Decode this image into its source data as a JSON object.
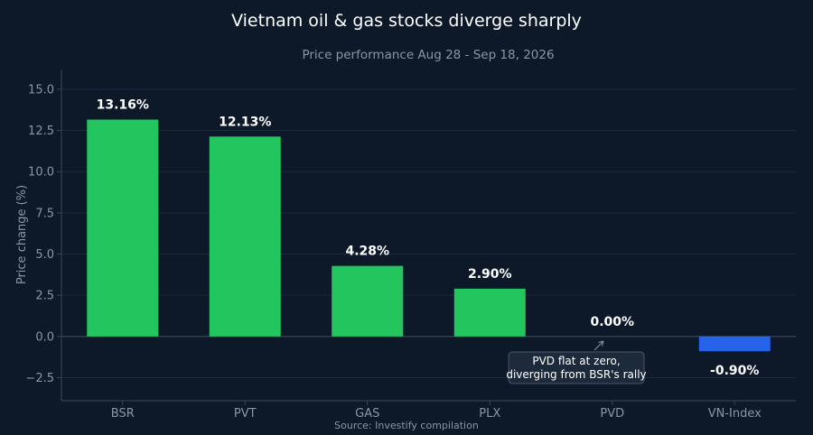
{
  "chart_data": {
    "type": "bar",
    "title": "Vietnam oil & gas stocks diverge sharply",
    "subtitle": "Price performance Aug 28 - Sep 18, 2026",
    "ylabel": "Price change (%)",
    "xlabel": "",
    "source": "Source: Investify compilation",
    "categories": [
      "BSR",
      "PVT",
      "GAS",
      "PLX",
      "PVD",
      "VN-Index"
    ],
    "values": [
      13.16,
      12.13,
      4.28,
      2.9,
      0.0,
      -0.9
    ],
    "data_labels": [
      "13.16%",
      "12.13%",
      "4.28%",
      "2.90%",
      "0.00%",
      "-0.90%"
    ],
    "ylim": [
      -3.9,
      16.2
    ],
    "yticks": [
      -2.5,
      0.0,
      2.5,
      5.0,
      7.5,
      10.0,
      12.5,
      15.0
    ],
    "ytick_labels": [
      "−2.5",
      "0.0",
      "2.5",
      "5.0",
      "7.5",
      "10.0",
      "12.5",
      "15.0"
    ],
    "grid": true,
    "colors": {
      "positive": "#22c55e",
      "negative": "#2563eb",
      "background": "#0d1829",
      "text": "#ffffff",
      "muted": "#8b95a7"
    },
    "annotation": {
      "target_category": "PVD",
      "lines": [
        "PVD flat at zero,",
        "diverging from BSR's rally"
      ]
    }
  }
}
